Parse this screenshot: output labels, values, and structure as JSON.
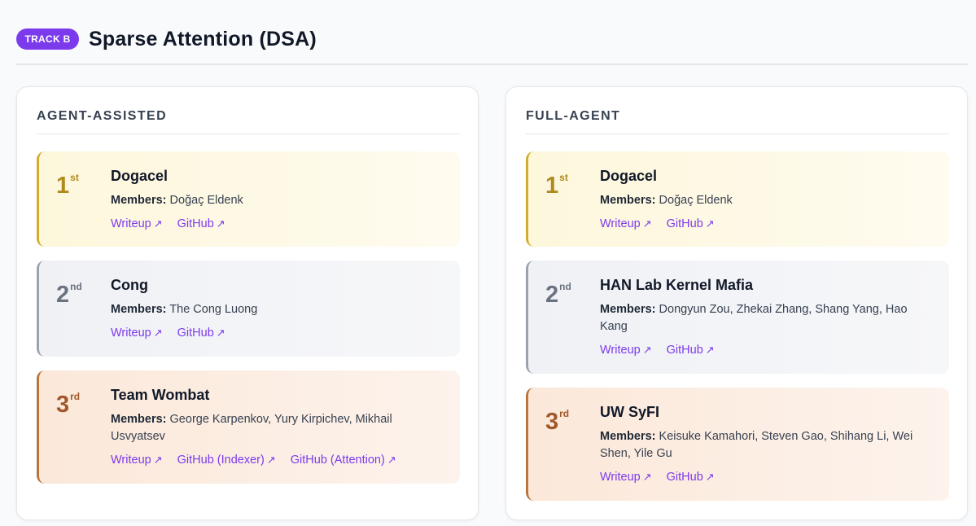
{
  "header": {
    "badge": "TRACK B",
    "title": "Sparse Attention (DSA)"
  },
  "columns": [
    {
      "title": "AGENT-ASSISTED",
      "entries": [
        {
          "place": "1",
          "suffix": "st",
          "team": "Dogacel",
          "members_label": "Members:",
          "members": "Doğaç Eldenk",
          "links": [
            "Writeup",
            "GitHub"
          ]
        },
        {
          "place": "2",
          "suffix": "nd",
          "team": "Cong",
          "members_label": "Members:",
          "members": "The Cong Luong",
          "links": [
            "Writeup",
            "GitHub"
          ]
        },
        {
          "place": "3",
          "suffix": "rd",
          "team": "Team Wombat",
          "members_label": "Members:",
          "members": "George Karpenkov, Yury Kirpichev, Mikhail Usvyatsev",
          "links": [
            "Writeup",
            "GitHub (Indexer)",
            "GitHub (Attention)"
          ]
        }
      ]
    },
    {
      "title": "FULL-AGENT",
      "entries": [
        {
          "place": "1",
          "suffix": "st",
          "team": "Dogacel",
          "members_label": "Members:",
          "members": "Doğaç Eldenk",
          "links": [
            "Writeup",
            "GitHub"
          ]
        },
        {
          "place": "2",
          "suffix": "nd",
          "team": "HAN Lab Kernel Mafia",
          "members_label": "Members:",
          "members": "Dongyun Zou, Zhekai Zhang, Shang Yang, Hao Kang",
          "links": [
            "Writeup",
            "GitHub"
          ]
        },
        {
          "place": "3",
          "suffix": "rd",
          "team": "UW SyFI",
          "members_label": "Members:",
          "members": "Keisuke Kamahori, Steven Gao, Shihang Li, Wei Shen, Yile Gu",
          "links": [
            "Writeup",
            "GitHub"
          ]
        }
      ]
    }
  ],
  "icons": {
    "external_link": "arrow-up-right-icon"
  },
  "colors": {
    "accent": "#7c3aed",
    "gold": "#d4ac2b",
    "silver": "#9ca3af",
    "bronze": "#b8753d"
  }
}
